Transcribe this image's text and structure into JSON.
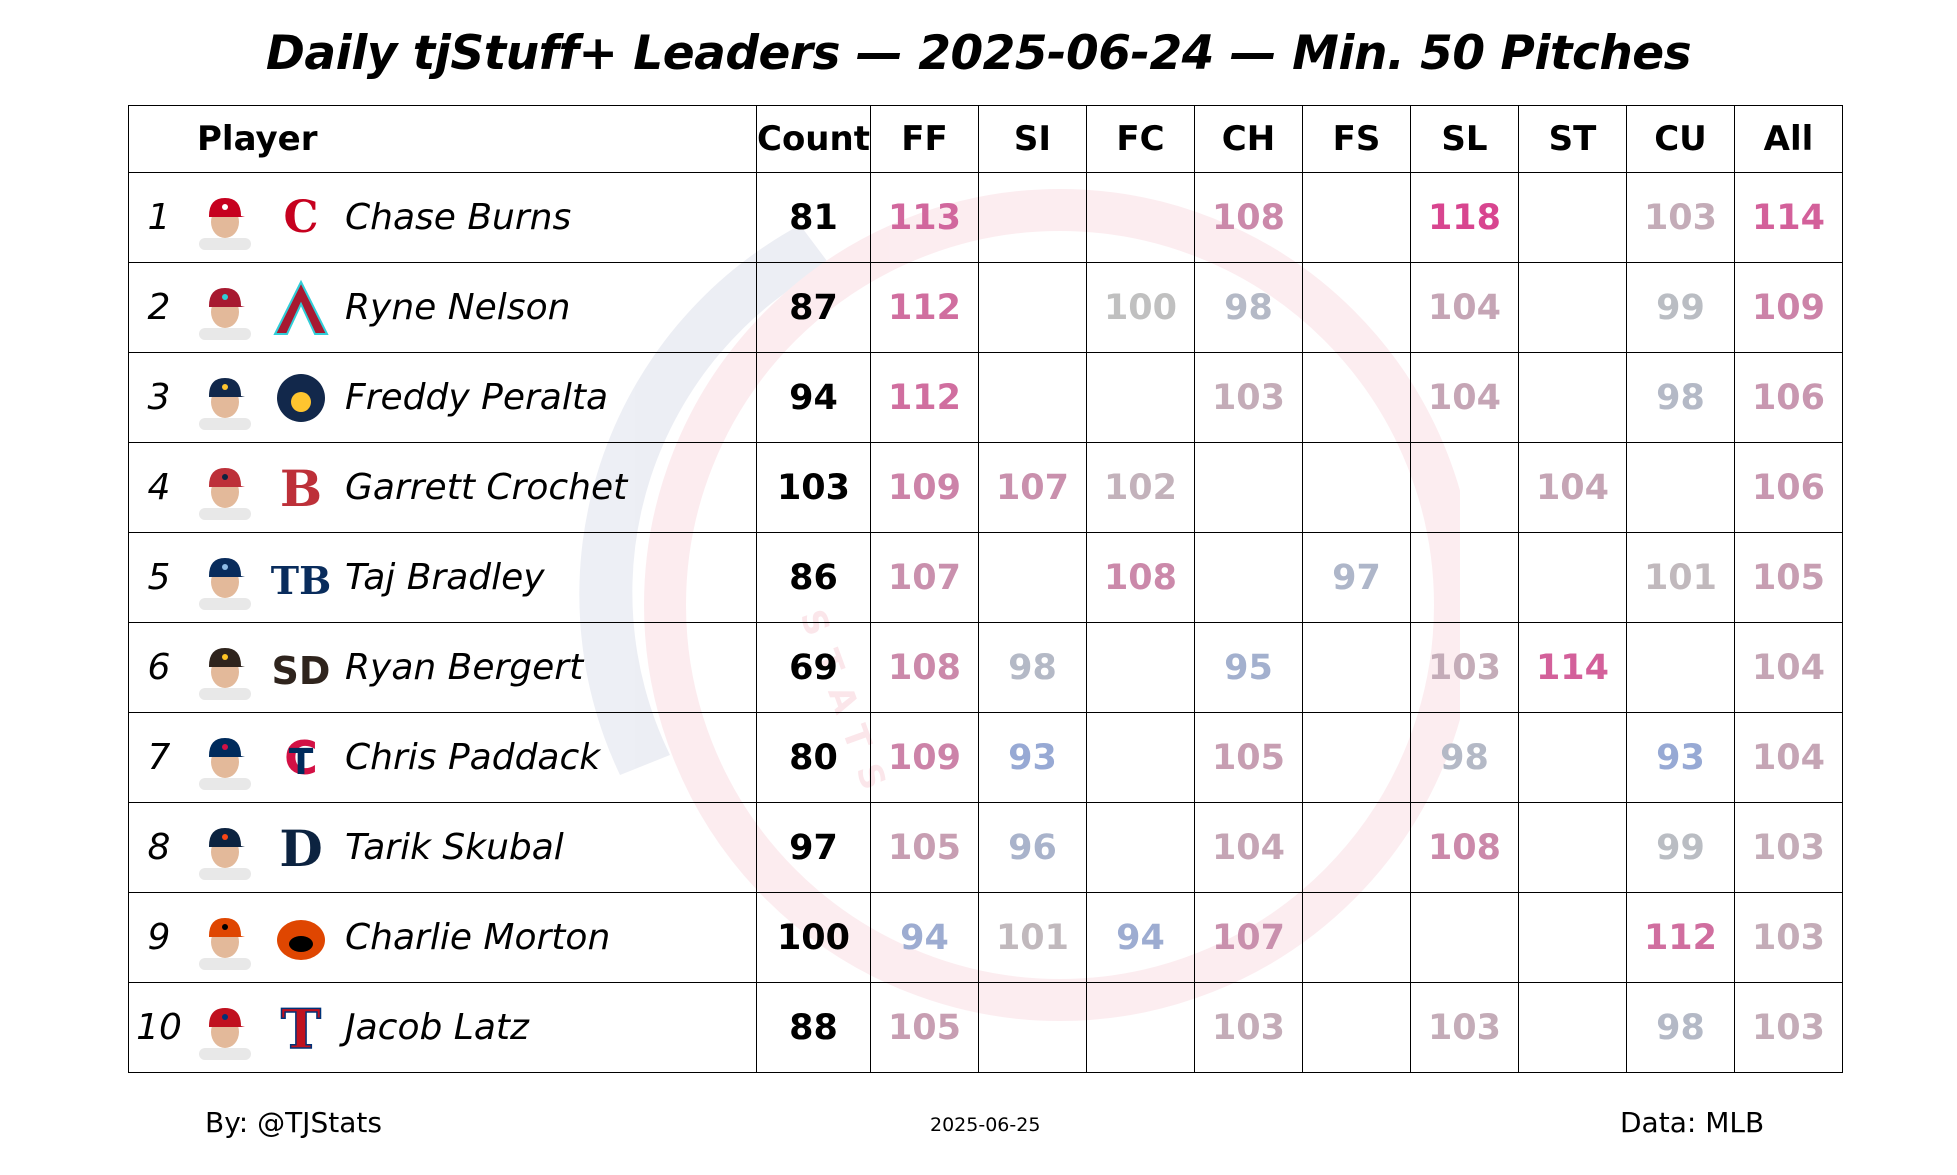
{
  "chart_data": {
    "type": "table",
    "title": "Daily tjStuff+ Leaders — 2025-06-24 — Min. 50 Pitches",
    "columns": [
      "Player",
      "Count",
      "FF",
      "SI",
      "FC",
      "CH",
      "FS",
      "SL",
      "ST",
      "CU",
      "All"
    ],
    "rows": [
      {
        "rank": "1",
        "player": "Chase Burns",
        "team": "CIN",
        "count": "81",
        "FF": "113",
        "SI": "",
        "FC": "",
        "CH": "108",
        "FS": "",
        "SL": "118",
        "ST": "",
        "CU": "103",
        "All": "114"
      },
      {
        "rank": "2",
        "player": "Ryne Nelson",
        "team": "ARI",
        "count": "87",
        "FF": "112",
        "SI": "",
        "FC": "100",
        "CH": "98",
        "FS": "",
        "SL": "104",
        "ST": "",
        "CU": "99",
        "All": "109"
      },
      {
        "rank": "3",
        "player": "Freddy Peralta",
        "team": "MIL",
        "count": "94",
        "FF": "112",
        "SI": "",
        "FC": "",
        "CH": "103",
        "FS": "",
        "SL": "104",
        "ST": "",
        "CU": "98",
        "All": "106"
      },
      {
        "rank": "4",
        "player": "Garrett Crochet",
        "team": "BOS",
        "count": "103",
        "FF": "109",
        "SI": "107",
        "FC": "102",
        "CH": "",
        "FS": "",
        "SL": "",
        "ST": "104",
        "CU": "",
        "All": "106"
      },
      {
        "rank": "5",
        "player": "Taj Bradley",
        "team": "TB",
        "count": "86",
        "FF": "107",
        "SI": "",
        "FC": "108",
        "CH": "",
        "FS": "97",
        "SL": "",
        "ST": "",
        "CU": "101",
        "All": "105"
      },
      {
        "rank": "6",
        "player": "Ryan Bergert",
        "team": "SD",
        "count": "69",
        "FF": "108",
        "SI": "98",
        "FC": "",
        "CH": "95",
        "FS": "",
        "SL": "103",
        "ST": "114",
        "CU": "",
        "All": "104"
      },
      {
        "rank": "7",
        "player": "Chris Paddack",
        "team": "MIN",
        "count": "80",
        "FF": "109",
        "SI": "93",
        "FC": "",
        "CH": "105",
        "FS": "",
        "SL": "98",
        "ST": "",
        "CU": "93",
        "All": "104"
      },
      {
        "rank": "8",
        "player": "Tarik Skubal",
        "team": "DET",
        "count": "97",
        "FF": "105",
        "SI": "96",
        "FC": "",
        "CH": "104",
        "FS": "",
        "SL": "108",
        "ST": "",
        "CU": "99",
        "All": "103"
      },
      {
        "rank": "9",
        "player": "Charlie Morton",
        "team": "BAL",
        "count": "100",
        "FF": "94",
        "SI": "101",
        "FC": "94",
        "CH": "107",
        "FS": "",
        "SL": "",
        "ST": "",
        "CU": "112",
        "All": "103"
      },
      {
        "rank": "10",
        "player": "Jacob Latz",
        "team": "TEX",
        "count": "88",
        "FF": "105",
        "SI": "",
        "FC": "",
        "CH": "103",
        "FS": "",
        "SL": "103",
        "ST": "",
        "CU": "98",
        "All": "103"
      }
    ],
    "color_scale": {
      "low": "#97A9D4",
      "mid": "#C0C0C0",
      "high": "#D8458F"
    }
  },
  "footer": {
    "by": "By: @TJStats",
    "date": "2025-06-25",
    "source": "Data: MLB"
  },
  "teams": {
    "CIN": {
      "colors": [
        "#C6011F",
        "#FFFFFF"
      ]
    },
    "ARI": {
      "colors": [
        "#A71930",
        "#30CED8"
      ]
    },
    "MIL": {
      "colors": [
        "#12284B",
        "#FFC52F"
      ]
    },
    "BOS": {
      "colors": [
        "#BD3039",
        "#0C2340"
      ]
    },
    "TB": {
      "colors": [
        "#092C5C",
        "#8FBCE6"
      ]
    },
    "SD": {
      "colors": [
        "#2F241D",
        "#FFC425"
      ]
    },
    "MIN": {
      "colors": [
        "#002B5C",
        "#D31145"
      ]
    },
    "DET": {
      "colors": [
        "#0C2340",
        "#FA4616"
      ]
    },
    "BAL": {
      "colors": [
        "#DF4601",
        "#000000"
      ]
    },
    "TEX": {
      "colors": [
        "#C0111F",
        "#003278"
      ]
    }
  }
}
